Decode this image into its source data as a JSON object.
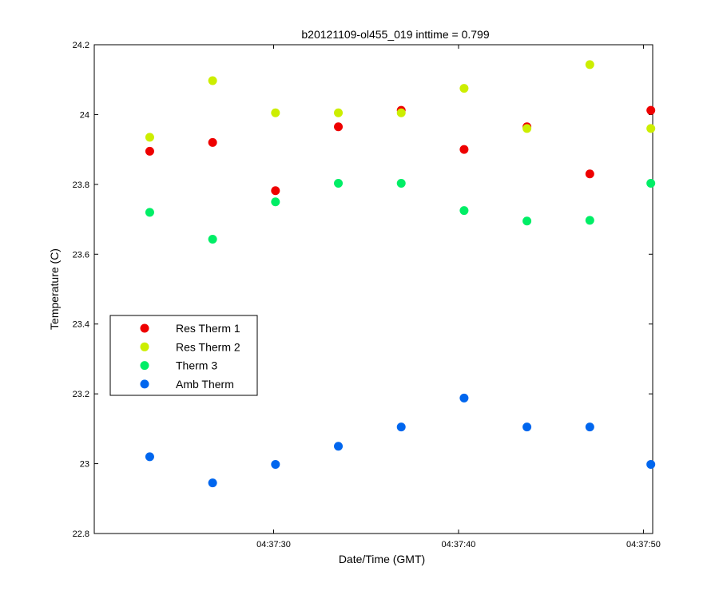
{
  "chart_data": {
    "type": "scatter",
    "title": "b20121109-ol455_019 inttime = 0.799",
    "xlabel": "Date/Time (GMT)",
    "ylabel": "Temperature (C)",
    "xlim_seconds": [
      20.8,
      51.0
    ],
    "ylim": [
      22.8,
      24.2
    ],
    "x_ticks": [
      {
        "value": 30.5,
        "label": "04:37:30"
      },
      {
        "value": 40.5,
        "label": "04:37:40"
      },
      {
        "value": 50.5,
        "label": "04:37:50"
      }
    ],
    "y_ticks": [
      {
        "value": 22.8,
        "label": "22.8"
      },
      {
        "value": 23.0,
        "label": "23"
      },
      {
        "value": 23.2,
        "label": "23.2"
      },
      {
        "value": 23.4,
        "label": "23.4"
      },
      {
        "value": 23.6,
        "label": "23.6"
      },
      {
        "value": 23.8,
        "label": "23.8"
      },
      {
        "value": 24.0,
        "label": "24"
      },
      {
        "value": 24.2,
        "label": "24.2"
      }
    ],
    "legend_position": "middle-left",
    "x": [
      23.8,
      27.2,
      30.6,
      34.0,
      37.4,
      40.8,
      44.2,
      47.6,
      50.9
    ],
    "series": [
      {
        "name": "Res Therm 1",
        "color": "#ee0000",
        "values": [
          23.895,
          23.92,
          23.782,
          23.965,
          24.012,
          23.9,
          23.965,
          23.83,
          24.012
        ]
      },
      {
        "name": "Res Therm 2",
        "color": "#ccee00",
        "values": [
          23.935,
          24.097,
          24.005,
          24.005,
          24.005,
          24.075,
          23.96,
          24.143,
          23.96
        ]
      },
      {
        "name": "Therm 3",
        "color": "#00ee66",
        "values": [
          23.72,
          23.643,
          23.75,
          23.803,
          23.803,
          23.725,
          23.695,
          23.697,
          23.803
        ]
      },
      {
        "name": "Amb Therm",
        "color": "#0066ee",
        "values": [
          23.02,
          22.945,
          22.998,
          23.05,
          23.105,
          23.188,
          23.105,
          23.105,
          22.998
        ]
      }
    ]
  }
}
